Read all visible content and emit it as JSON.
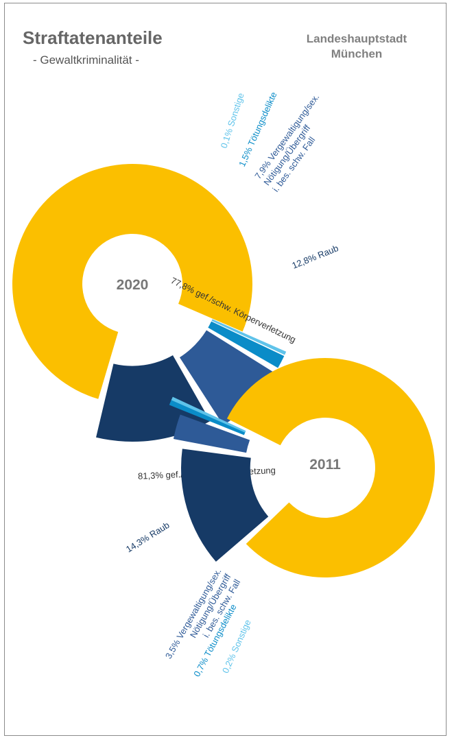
{
  "header": {
    "title": "Straftatenanteile",
    "subtitle": "- Gewaltkriminalität -",
    "org_line1": "Landeshauptstadt",
    "org_line2": "München"
  },
  "colors": {
    "koerperverletzung": "#fbbf00",
    "raub": "#163a66",
    "vergewaltigung": "#2e5a97",
    "toetung": "#0a8cc8",
    "sonstige": "#5fc3ea"
  },
  "chart_data": [
    {
      "type": "pie",
      "year": "2020",
      "slices": [
        {
          "key": "koerperverletzung",
          "value": 77.8,
          "label_lines": [
            "77,8% gef./schw. Körperverletzung"
          ]
        },
        {
          "key": "raub",
          "value": 12.8,
          "label_lines": [
            "12,8% Raub"
          ]
        },
        {
          "key": "vergewaltigung",
          "value": 7.9,
          "label_lines": [
            "7,9% Vergewaltigung/sex.",
            "Nötigung/Übergriff",
            "i. bes. schw. Fall"
          ]
        },
        {
          "key": "toetung",
          "value": 1.5,
          "label_lines": [
            "1,5% Tötungsdelikte"
          ]
        },
        {
          "key": "sonstige",
          "value": 0.1,
          "label_lines": [
            "0,1% Sonstige"
          ]
        }
      ]
    },
    {
      "type": "pie",
      "year": "2011",
      "slices": [
        {
          "key": "koerperverletzung",
          "value": 81.3,
          "label_lines": [
            "81,3% gef./schw. Körperverletzung"
          ]
        },
        {
          "key": "raub",
          "value": 14.3,
          "label_lines": [
            "14,3% Raub"
          ]
        },
        {
          "key": "vergewaltigung",
          "value": 3.5,
          "label_lines": [
            "3,5% Vergewaltigung/sex.",
            "Nötigung/Übergriff",
            "i. bes. schw. Fall"
          ]
        },
        {
          "key": "toetung",
          "value": 0.7,
          "label_lines": [
            "0,7% Tötungsdelikte"
          ]
        },
        {
          "key": "sonstige",
          "value": 0.2,
          "label_lines": [
            "0,2% Sonstige"
          ]
        }
      ]
    }
  ]
}
